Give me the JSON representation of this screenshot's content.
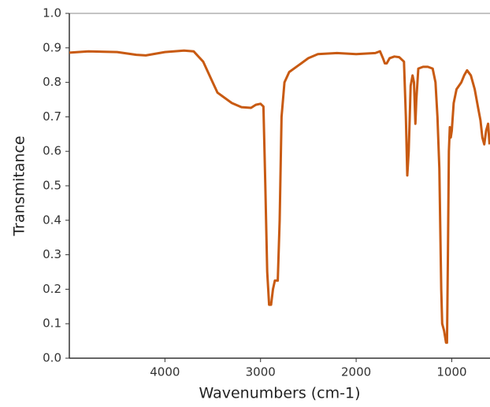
{
  "chart_data": {
    "type": "line",
    "x_label": "Wavenumbers (cm-1)",
    "y_label": "Transmitance",
    "xlim": [
      5000,
      600
    ],
    "ylim": [
      0,
      1
    ],
    "xticks": [
      4000,
      3000,
      2000,
      1000
    ],
    "yticks": [
      {
        "value": 0,
        "label": "0.0"
      },
      0.1,
      0.2,
      0.3,
      0.4,
      0.5,
      0.6,
      0.7,
      0.8,
      0.9,
      {
        "value": 1,
        "label": "1.0"
      }
    ],
    "x": [
      5000,
      4800,
      4500,
      4300,
      4200,
      4000,
      3800,
      3700,
      3600,
      3500,
      3450,
      3400,
      3300,
      3200,
      3100,
      3050,
      3000,
      2970,
      2950,
      2930,
      2910,
      2890,
      2870,
      2850,
      2820,
      2800,
      2780,
      2750,
      2700,
      2600,
      2500,
      2400,
      2200,
      2000,
      1800,
      1750,
      1720,
      1700,
      1680,
      1650,
      1600,
      1550,
      1500,
      1480,
      1465,
      1450,
      1430,
      1410,
      1395,
      1380,
      1370,
      1350,
      1300,
      1250,
      1200,
      1170,
      1150,
      1130,
      1110,
      1100,
      1080,
      1060,
      1050,
      1040,
      1030,
      1020,
      1010,
      1000,
      980,
      950,
      900,
      870,
      840,
      800,
      760,
      720,
      700,
      680,
      660,
      640,
      620,
      605
    ],
    "series": [
      {
        "color": "#c85a12",
        "values": [
          0.886,
          0.89,
          0.888,
          0.88,
          0.878,
          0.888,
          0.892,
          0.89,
          0.86,
          0.8,
          0.77,
          0.76,
          0.74,
          0.728,
          0.726,
          0.735,
          0.738,
          0.73,
          0.5,
          0.25,
          0.155,
          0.155,
          0.2,
          0.225,
          0.225,
          0.4,
          0.7,
          0.8,
          0.83,
          0.85,
          0.87,
          0.882,
          0.885,
          0.882,
          0.885,
          0.89,
          0.87,
          0.855,
          0.855,
          0.87,
          0.875,
          0.873,
          0.86,
          0.7,
          0.53,
          0.6,
          0.79,
          0.82,
          0.8,
          0.68,
          0.75,
          0.84,
          0.845,
          0.845,
          0.84,
          0.8,
          0.7,
          0.55,
          0.2,
          0.1,
          0.08,
          0.045,
          0.045,
          0.3,
          0.6,
          0.67,
          0.64,
          0.66,
          0.74,
          0.78,
          0.8,
          0.82,
          0.835,
          0.82,
          0.78,
          0.72,
          0.69,
          0.64,
          0.62,
          0.66,
          0.68,
          0.62
        ]
      }
    ]
  }
}
